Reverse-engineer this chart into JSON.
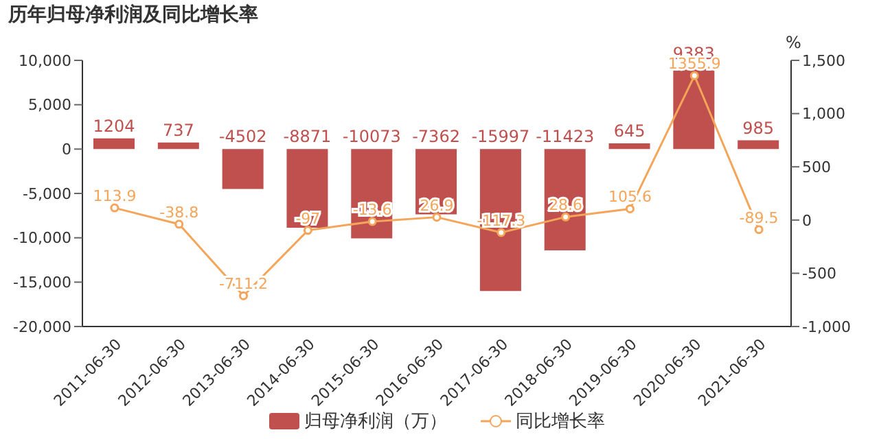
{
  "chart_data": {
    "type": "bar",
    "title": "历年归母净利润及同比增长率",
    "categories": [
      "2011-06-30",
      "2012-06-30",
      "2013-06-30",
      "2014-06-30",
      "2015-06-30",
      "2016-06-30",
      "2017-06-30",
      "2018-06-30",
      "2019-06-30",
      "2020-06-30",
      "2021-06-30"
    ],
    "series": [
      {
        "name": "归母净利润（万）",
        "color": "#c0504d",
        "values": [
          1204,
          737,
          -4502,
          -8871,
          -10073,
          -7362,
          -15997,
          -11423,
          645,
          9383,
          985
        ]
      },
      {
        "name": "同比增长率",
        "type": "line",
        "axis": "y2",
        "color": "#f5a55a",
        "values": [
          113.9,
          -38.8,
          -711.2,
          -97,
          -13.6,
          26.9,
          -117.3,
          28.6,
          105.6,
          1355.9,
          -89.5
        ]
      }
    ],
    "ylim": [
      -20000,
      10000
    ],
    "yticks": [
      {
        "value": -20000,
        "label": "-20,000"
      },
      {
        "value": -15000,
        "label": "-15,000"
      },
      {
        "value": -10000,
        "label": "-10,000"
      },
      {
        "value": -5000,
        "label": "-5,000"
      },
      0,
      {
        "value": 5000,
        "label": "5,000"
      },
      {
        "value": 10000,
        "label": "10,000"
      }
    ],
    "y2label": "%",
    "y2lim": [
      -1000,
      1500
    ],
    "y2ticks": [
      {
        "value": -1000,
        "label": "-1,000"
      },
      -500,
      0,
      500,
      {
        "value": 1000,
        "label": "1,000"
      },
      {
        "value": 1500,
        "label": "1,500"
      }
    ],
    "data_labels": true,
    "legend": "bottom",
    "marker": "circle"
  }
}
